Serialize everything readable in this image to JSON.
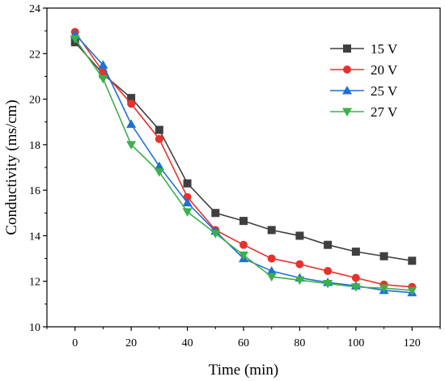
{
  "chart_data": {
    "type": "line",
    "title": "",
    "xlabel": "Time (min)",
    "ylabel": "Conductivity (ms/cm)",
    "xlim": [
      -10,
      130
    ],
    "ylim": [
      10,
      24
    ],
    "xticks": [
      0,
      20,
      40,
      60,
      80,
      100,
      120
    ],
    "yticks": [
      10,
      12,
      14,
      16,
      18,
      20,
      22,
      24
    ],
    "grid": false,
    "legend_position": "top-right",
    "x": [
      0,
      10,
      20,
      30,
      40,
      50,
      60,
      70,
      80,
      90,
      100,
      110,
      120
    ],
    "series": [
      {
        "name": "15 V",
        "color": "#3f3f3f",
        "marker": "square",
        "values": [
          22.5,
          21.1,
          20.05,
          18.65,
          16.3,
          15.0,
          14.65,
          14.25,
          14.0,
          13.6,
          13.3,
          13.1,
          12.9
        ]
      },
      {
        "name": "20 V",
        "color": "#e8312b",
        "marker": "circle",
        "values": [
          22.95,
          21.2,
          19.8,
          18.25,
          15.7,
          14.25,
          13.6,
          13.0,
          12.75,
          12.45,
          12.15,
          11.85,
          11.75
        ]
      },
      {
        "name": "25 V",
        "color": "#1f6fd6",
        "marker": "triangle-up",
        "values": [
          22.85,
          21.5,
          18.9,
          17.05,
          15.45,
          14.2,
          13.0,
          12.45,
          12.15,
          11.95,
          11.8,
          11.6,
          11.5
        ]
      },
      {
        "name": "27 V",
        "color": "#3cb04a",
        "marker": "triangle-down",
        "values": [
          22.65,
          20.9,
          18.0,
          16.8,
          15.05,
          14.1,
          13.15,
          12.2,
          12.05,
          11.9,
          11.75,
          11.7,
          11.6
        ]
      }
    ]
  }
}
